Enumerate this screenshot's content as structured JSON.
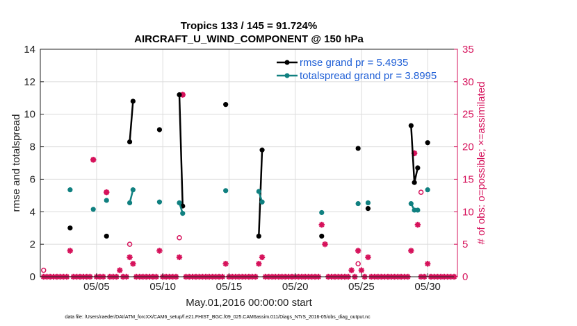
{
  "chart_data": {
    "type": "scatter",
    "title": "Tropics 133 / 145 = 91.724%",
    "subtitle": "AIRCRAFT_U_WIND_COMPONENT @ 150 hPa",
    "xlabel": "May.01,2016 00:00:00 start",
    "ylabel": "rmse and totalspread",
    "ylabel_right": "# of obs: o=possible; ×=assimilated",
    "footer": "data file: /Users/raeder/DAI/ATM_forcXX/CAM6_setup/f.e21.FHIST_BGC.f09_025.CAM6assim.011/Diags_NTrS_2016-05/obs_diag_output.nc",
    "x_tick_labels": [
      "05/05",
      "05/10",
      "05/15",
      "05/20",
      "05/25",
      "05/30"
    ],
    "x_tick_values": [
      5,
      10,
      15,
      20,
      25,
      30
    ],
    "xlim": [
      0.75,
      32.25
    ],
    "ylim": [
      0,
      14
    ],
    "yticks": [
      0,
      2,
      4,
      6,
      8,
      10,
      12,
      14
    ],
    "ylim_right": [
      0,
      35
    ],
    "yticks_right": [
      0,
      5,
      10,
      15,
      20,
      25,
      30,
      35
    ],
    "grid": true,
    "legend_position": "top-right",
    "colors": {
      "rmse": "#000000",
      "spread": "#108080",
      "obs": "#d6125b",
      "right_axis": "#d6125b",
      "legend_text": "#1f5fd6"
    },
    "series": [
      {
        "name": "rmse grand pr = 5.4935",
        "color": "#000000",
        "points": [
          [
            3.0,
            3.0
          ],
          [
            5.75,
            2.5
          ],
          [
            7.5,
            8.3
          ],
          [
            7.75,
            10.8
          ],
          [
            9.75,
            9.05
          ],
          [
            11.25,
            11.2
          ],
          [
            11.5,
            4.35
          ],
          [
            14.75,
            10.6
          ],
          [
            17.25,
            2.5
          ],
          [
            17.5,
            7.8
          ],
          [
            22.0,
            2.5
          ],
          [
            24.75,
            7.9
          ],
          [
            25.5,
            4.2
          ],
          [
            28.75,
            9.3
          ],
          [
            29.0,
            5.8
          ],
          [
            29.25,
            6.7
          ],
          [
            30.0,
            8.25
          ]
        ],
        "segments": [
          [
            [
              7.5,
              8.3
            ],
            [
              7.75,
              10.8
            ]
          ],
          [
            [
              11.25,
              11.2
            ],
            [
              11.5,
              4.35
            ]
          ],
          [
            [
              17.25,
              2.5
            ],
            [
              17.5,
              7.8
            ]
          ],
          [
            [
              28.75,
              9.3
            ],
            [
              29.0,
              5.8
            ],
            [
              29.25,
              6.7
            ]
          ]
        ]
      },
      {
        "name": "totalspread grand pr = 3.8995",
        "color": "#108080",
        "points": [
          [
            3.0,
            5.35
          ],
          [
            4.75,
            4.15
          ],
          [
            5.75,
            4.7
          ],
          [
            7.5,
            4.55
          ],
          [
            7.75,
            5.35
          ],
          [
            9.75,
            4.6
          ],
          [
            11.25,
            4.55
          ],
          [
            11.5,
            3.9
          ],
          [
            14.75,
            5.3
          ],
          [
            17.25,
            5.25
          ],
          [
            17.5,
            4.6
          ],
          [
            22.0,
            3.95
          ],
          [
            24.75,
            4.5
          ],
          [
            25.5,
            4.55
          ],
          [
            28.75,
            4.5
          ],
          [
            29.0,
            4.1
          ],
          [
            29.25,
            4.1
          ],
          [
            30.0,
            5.35
          ]
        ],
        "segments": [
          [
            [
              7.5,
              4.55
            ],
            [
              7.75,
              5.35
            ]
          ],
          [
            [
              11.25,
              4.55
            ],
            [
              11.5,
              3.9
            ]
          ],
          [
            [
              17.25,
              5.25
            ],
            [
              17.5,
              4.6
            ]
          ],
          [
            [
              28.75,
              4.5
            ],
            [
              29.0,
              4.1
            ],
            [
              29.25,
              4.1
            ]
          ]
        ]
      }
    ],
    "obs_possible": [
      [
        1.0,
        1
      ],
      [
        4.75,
        18
      ],
      [
        5.75,
        13
      ],
      [
        7.5,
        5
      ],
      [
        11.25,
        6
      ],
      [
        11.5,
        28
      ],
      [
        24.75,
        2
      ],
      [
        29.0,
        19
      ],
      [
        29.5,
        13
      ]
    ],
    "obs_assimilated": [
      [
        3.0,
        4
      ],
      [
        4.75,
        18
      ],
      [
        5.75,
        13
      ],
      [
        6.75,
        1
      ],
      [
        7.5,
        3
      ],
      [
        7.75,
        2
      ],
      [
        9.75,
        4
      ],
      [
        11.25,
        3
      ],
      [
        11.5,
        28
      ],
      [
        14.75,
        2
      ],
      [
        17.25,
        2
      ],
      [
        17.5,
        3
      ],
      [
        22.0,
        8
      ],
      [
        22.25,
        5
      ],
      [
        24.25,
        1
      ],
      [
        24.75,
        4
      ],
      [
        25.0,
        1
      ],
      [
        25.5,
        3
      ],
      [
        28.75,
        4
      ],
      [
        29.0,
        19
      ],
      [
        29.25,
        8
      ],
      [
        30.0,
        2
      ]
    ],
    "zero_obs_x_start": 1.0,
    "zero_obs_x_end": 32.0,
    "zero_obs_x_step": 0.25
  }
}
